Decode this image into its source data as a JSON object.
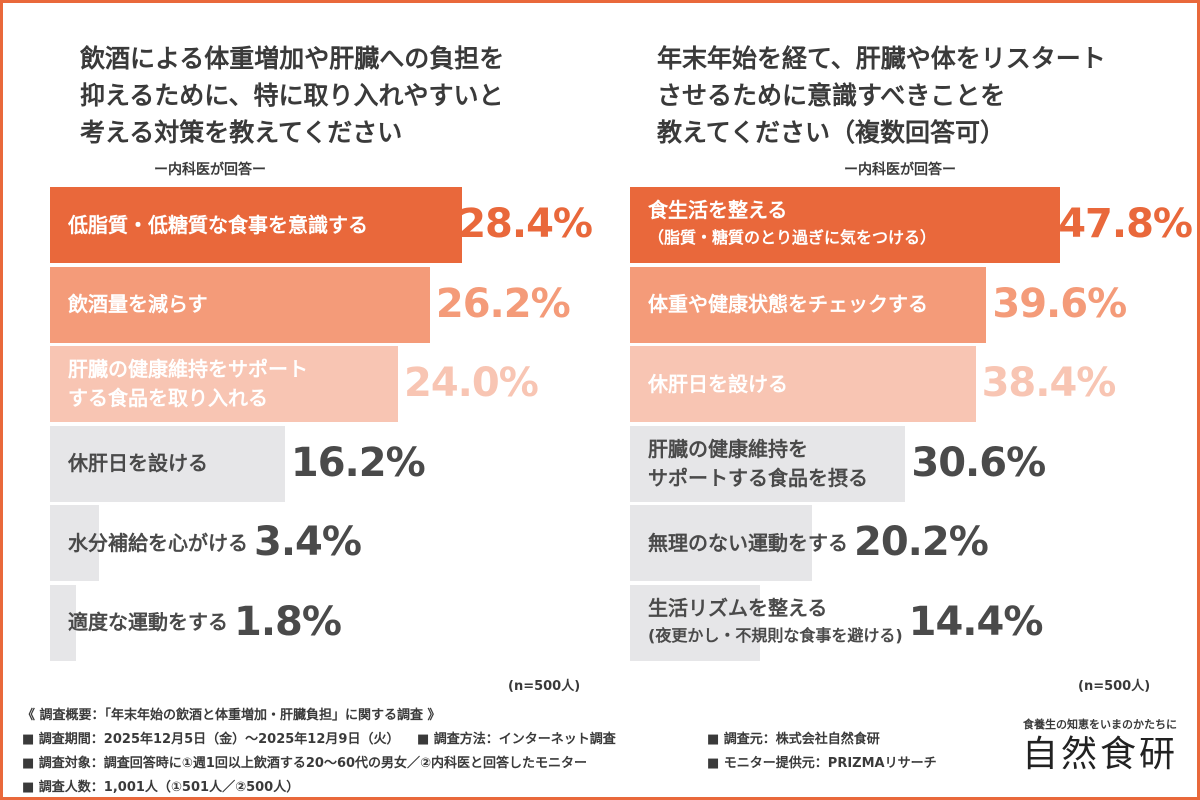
{
  "colors": {
    "frame": "#e9683b",
    "rank1": "#e9683b",
    "rank2": "#f49b79",
    "rank3": "#f8c5b3",
    "other": "#e6e6e8",
    "text_dark": "#4a4a4a",
    "text_light": "#ffffff"
  },
  "chart_data": [
    {
      "type": "bar",
      "orientation": "horizontal",
      "title": "飲酒による体重増加や肝臓への負担を\n抑えるために、特に取り入れやすいと\n考える対策を教えてください",
      "subtitle": "ー内科医が回答ー",
      "categories": [
        {
          "label": "低脂質・低糖質な食事を意識する",
          "sub": ""
        },
        {
          "label": "飲酒量を減らす",
          "sub": ""
        },
        {
          "label": "肝臓の健康維持をサポート\nする食品を取り入れる",
          "sub": ""
        },
        {
          "label": "休肝日を設ける",
          "sub": ""
        },
        {
          "label": "水分補給を心がける",
          "sub": ""
        },
        {
          "label": "適度な運動をする",
          "sub": ""
        }
      ],
      "values": [
        28.4,
        26.2,
        24.0,
        16.2,
        3.4,
        1.8
      ],
      "value_labels": [
        "28.4%",
        "26.2%",
        "24.0%",
        "16.2%",
        "3.4%",
        "1.8%"
      ],
      "xlim": [
        0,
        30
      ],
      "n_label": "(n=500人)"
    },
    {
      "type": "bar",
      "orientation": "horizontal",
      "title": "年末年始を経て、肝臓や体をリスタート\nさせるために意識すべきことを\n教えてください（複数回答可）",
      "subtitle": "ー内科医が回答ー",
      "categories": [
        {
          "label": "食生活を整える",
          "sub": "（脂質・糖質のとり過ぎに気をつける）"
        },
        {
          "label": "体重や健康状態をチェックする",
          "sub": ""
        },
        {
          "label": "休肝日を設ける",
          "sub": ""
        },
        {
          "label": "肝臓の健康維持を\nサポートする食品を摂る",
          "sub": ""
        },
        {
          "label": "無理のない運動をする",
          "sub": ""
        },
        {
          "label": "生活リズムを整える",
          "sub": "(夜更かし・不規則な食事を避ける)"
        }
      ],
      "values": [
        47.8,
        39.6,
        38.4,
        30.6,
        20.2,
        14.4
      ],
      "value_labels": [
        "47.8%",
        "39.6%",
        "38.4%",
        "30.6%",
        "20.2%",
        "14.4%"
      ],
      "xlim": [
        0,
        50
      ],
      "n_label": "(n=500人)"
    }
  ],
  "footer": {
    "heading": "《 調査概要：「年末年始の飲酒と体重増加・肝臓負担」に関する調査 》",
    "period": "■ 調査期間：2025年12月5日（金）〜2025年12月9日（火）",
    "method": "■ 調査方法：インターネット調査",
    "source": "■ 調査元：株式会社自然食研",
    "target": "■ 調査対象：調査回答時に①週1回以上飲酒する20〜60代の男女／②内科医と回答したモニター",
    "provider": "■ モニター提供元：PRIZMAリサーチ",
    "count": "■ 調査人数：1,001人（①501人／②500人）"
  },
  "brand": {
    "tagline": "食養生の知恵をいまのかたちに",
    "logo": "自然食研"
  }
}
